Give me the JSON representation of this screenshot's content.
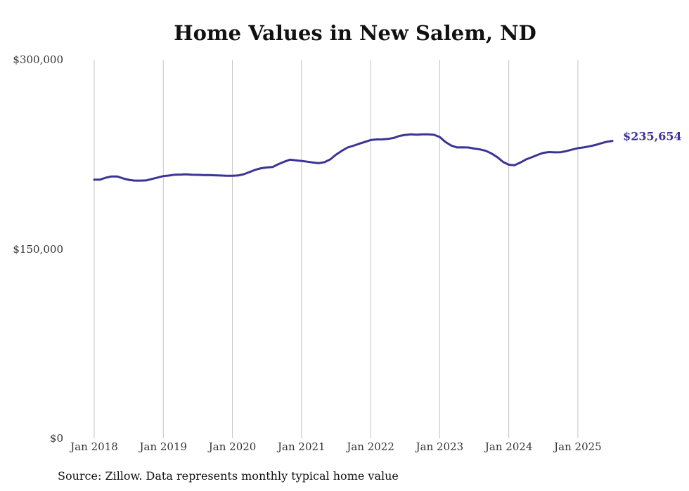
{
  "title": "Home Values in New Salem, ND",
  "source": "Source: Zillow. Data represents monthly typical home value",
  "chart_data": {
    "type": "line",
    "title": "Home Values in New Salem, ND",
    "xlabel": "",
    "ylabel": "",
    "y_ticks": [
      "$0",
      "$150,000",
      "$300,000"
    ],
    "ylim": [
      0,
      300000
    ],
    "x_ticks": [
      "Jan 2018",
      "Jan 2019",
      "Jan 2020",
      "Jan 2021",
      "Jan 2022",
      "Jan 2023",
      "Jan 2024",
      "Jan 2025"
    ],
    "grid": "vertical",
    "line_color": "#3b3496",
    "end_label": "$235,654",
    "series": [
      {
        "x": [
          "2018-01",
          "2018-02",
          "2018-03",
          "2018-04",
          "2018-05",
          "2018-06",
          "2018-07",
          "2018-08",
          "2018-09",
          "2018-10",
          "2018-11",
          "2018-12",
          "2019-01",
          "2019-02",
          "2019-03",
          "2019-04",
          "2019-05",
          "2019-06",
          "2019-07",
          "2019-08",
          "2019-09",
          "2019-10",
          "2019-11",
          "2019-12",
          "2020-01",
          "2020-02",
          "2020-03",
          "2020-04",
          "2020-05",
          "2020-06",
          "2020-07",
          "2020-08",
          "2020-09",
          "2020-10",
          "2020-11",
          "2020-12",
          "2021-01",
          "2021-02",
          "2021-03",
          "2021-04",
          "2021-05",
          "2021-06",
          "2021-07",
          "2021-08",
          "2021-09",
          "2021-10",
          "2021-11",
          "2021-12",
          "2022-01",
          "2022-02",
          "2022-03",
          "2022-04",
          "2022-05",
          "2022-06",
          "2022-07",
          "2022-08",
          "2022-09",
          "2022-10",
          "2022-11",
          "2022-12",
          "2023-01",
          "2023-02",
          "2023-03",
          "2023-04",
          "2023-05",
          "2023-06",
          "2023-07",
          "2023-08",
          "2023-09",
          "2023-10",
          "2023-11",
          "2023-12",
          "2024-01",
          "2024-02",
          "2024-03",
          "2024-04",
          "2024-05",
          "2024-06",
          "2024-07",
          "2024-08",
          "2024-09",
          "2024-10",
          "2024-11",
          "2024-12",
          "2025-01",
          "2025-02",
          "2025-03",
          "2025-04",
          "2025-05",
          "2025-06",
          "2025-07"
        ],
        "values": [
          205000,
          205000,
          206500,
          207500,
          207500,
          206000,
          204800,
          204200,
          204200,
          204300,
          205500,
          206600,
          207800,
          208200,
          208900,
          209000,
          209200,
          208900,
          208800,
          208600,
          208600,
          208400,
          208200,
          208000,
          208000,
          208300,
          209300,
          211000,
          212800,
          214000,
          214600,
          215000,
          217300,
          219200,
          220800,
          220300,
          219800,
          219200,
          218500,
          218000,
          218800,
          221000,
          224800,
          227800,
          230400,
          231800,
          233400,
          234800,
          236300,
          236800,
          236900,
          237200,
          238000,
          239600,
          240400,
          240900,
          240600,
          240900,
          240900,
          240500,
          238800,
          234800,
          232000,
          230500,
          230600,
          230400,
          229600,
          228900,
          227800,
          225700,
          222800,
          219000,
          216800,
          216400,
          218500,
          221000,
          222700,
          224600,
          226200,
          226800,
          226600,
          226700,
          227600,
          228800,
          229900,
          230500,
          231400,
          232400,
          233700,
          235000,
          235654
        ]
      }
    ]
  }
}
